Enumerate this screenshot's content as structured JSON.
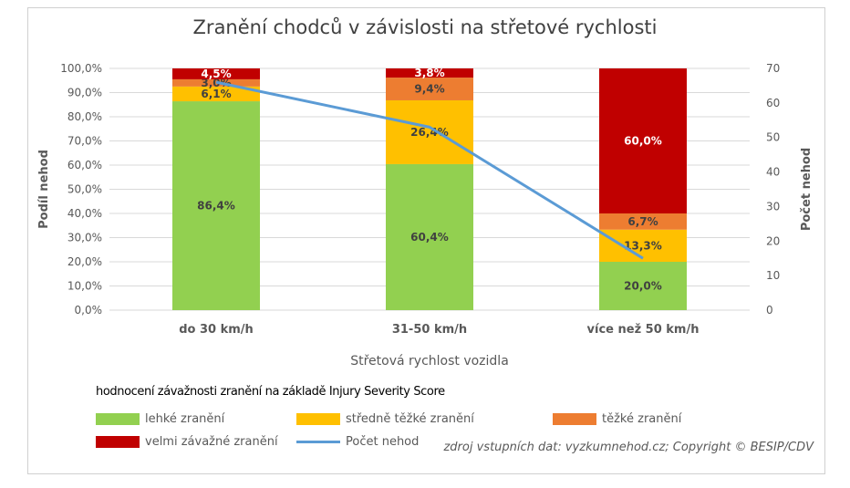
{
  "chart_data": {
    "type": "bar",
    "title": "Zranění chodců v závislosti na střetové rychlosti",
    "xlabel": "Střetová rychlost vozidla",
    "ylabel": "Podíl nehod",
    "y2label": "Počet nehod",
    "categories": [
      "do 30 km/h",
      "31-50 km/h",
      "více než 50 km/h"
    ],
    "ylim": [
      0,
      100
    ],
    "y2lim": [
      0,
      70
    ],
    "yticks": [
      "0,0%",
      "10,0%",
      "20,0%",
      "30,0%",
      "40,0%",
      "50,0%",
      "60,0%",
      "70,0%",
      "80,0%",
      "90,0%",
      "100,0%"
    ],
    "y2ticks": [
      "0",
      "10",
      "20",
      "30",
      "40",
      "50",
      "60",
      "70"
    ],
    "series": [
      {
        "name": "lehké zranění",
        "color": "#92d050",
        "values": [
          86.4,
          60.4,
          20.0
        ],
        "labels": [
          "86,4%",
          "60,4%",
          "20,0%"
        ]
      },
      {
        "name": "středně těžké zranění",
        "color": "#ffc000",
        "values": [
          6.1,
          26.4,
          13.3
        ],
        "labels": [
          "6,1%",
          "26,4%",
          "13,3%"
        ]
      },
      {
        "name": "těžké zranění",
        "color": "#ed7d31",
        "values": [
          3.0,
          9.4,
          6.7
        ],
        "labels": [
          "3,0%",
          "9,4%",
          "6,7%"
        ]
      },
      {
        "name": "velmi závažné zranění",
        "color": "#c00000",
        "values": [
          4.5,
          3.8,
          60.0
        ],
        "labels": [
          "4,5%",
          "3,8%",
          "60,0%"
        ]
      }
    ],
    "line_series": {
      "name": "Počet nehod",
      "color": "#5b9bd5",
      "axis": "secondary",
      "values": [
        66,
        53,
        15
      ]
    },
    "legend_title": "hodnocení závažnosti zranění na základě Injury Severity Score",
    "source": "zdroj vstupních dat: vyzkumnehod.cz; Copyright © BESIP/CDV"
  }
}
